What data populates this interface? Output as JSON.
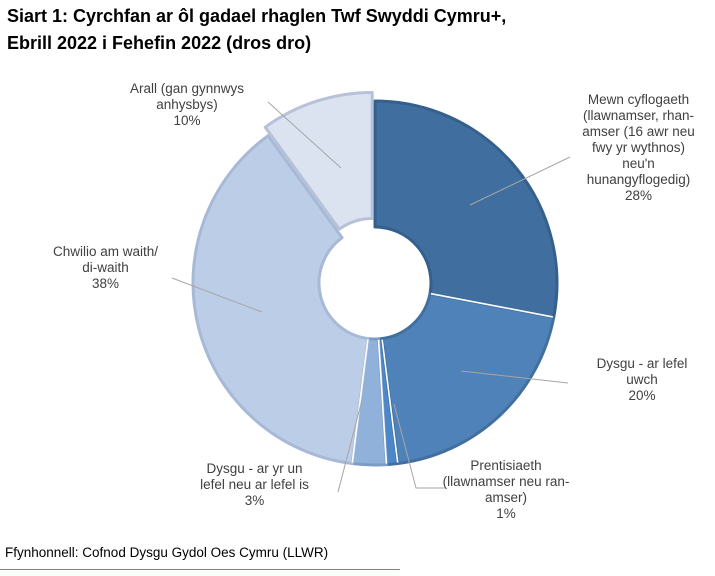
{
  "title": {
    "line1": "Siart 1: Cyrchfan ar ôl gadael rhaglen Twf Swyddi Cymru+,",
    "line2": "Ebrill 2022 i Fehefin 2022 (dros dro)"
  },
  "source": "Ffynhonnell: Cofnod Dysgu Gydol Oes Cymru (LLWR)",
  "colors": {
    "background": "#ffffff",
    "leader_line": "#a6a6a6",
    "label_text": "#404040",
    "source_underline": "#4472c4",
    "separator": "#ffffff"
  },
  "chart_data": {
    "type": "pie",
    "subtype": "donut",
    "title": "Siart 1: Cyrchfan ar ôl gadael rhaglen Twf Swyddi Cymru+, Ebrill 2022 i Fehefin 2022 (dros dro)",
    "start_angle_deg": 0,
    "direction": "clockwise",
    "legend": "none",
    "segments": [
      {
        "key": "mewn",
        "label": "Mewn cyflogaeth (llawnamser, rhan-amser (16 awr neu fwy yr wythnos) neu'n hunangyflogedig)",
        "value_pct": 28,
        "color": "#406e9e",
        "border": "#35608d",
        "exploded": false
      },
      {
        "key": "dysgu-uwch",
        "label": "Dysgu - ar lefel uwch",
        "value_pct": 20,
        "color": "#4e82b8",
        "border": "#426f9e",
        "exploded": false
      },
      {
        "key": "prentisiaeth",
        "label": "Prentisiaeth (llawnamser neu ran-amser)",
        "value_pct": 1,
        "color": "#4c87c9",
        "border": "#3f70a4",
        "exploded": false
      },
      {
        "key": "dysgu-is",
        "label": "Dysgu - ar yr un lefel neu ar lefel is",
        "value_pct": 3,
        "color": "#8fb1da",
        "border": "#7c9cc4",
        "exploded": false
      },
      {
        "key": "chwilio",
        "label": "Chwilio am waith/ di-waith",
        "value_pct": 38,
        "color": "#bccde8",
        "border": "#a7b9d6",
        "exploded": false
      },
      {
        "key": "arall",
        "label": "Arall (gan gynnwys anhysbys)",
        "value_pct": 10,
        "color": "#dbe3f1",
        "border": "#b7c2d8",
        "exploded": true
      }
    ]
  },
  "callouts": [
    {
      "key": "arall",
      "lines": [
        "Arall (gan gynnwys",
        "anhysbys)",
        "10%"
      ]
    },
    {
      "key": "mewn",
      "lines": [
        "Mewn cyflogaeth",
        "(llawnamser, rhan-",
        "amser (16 awr neu",
        "fwy yr wythnos)",
        "neu'n",
        "hunangyflogedig)",
        "28%"
      ]
    },
    {
      "key": "dysgu-uwch",
      "lines": [
        "Dysgu - ar lefel",
        "uwch",
        "20%"
      ]
    },
    {
      "key": "prentisiaeth",
      "lines": [
        "Prentisiaeth",
        "(llawnamser neu ran-",
        "amser)",
        "1%"
      ]
    },
    {
      "key": "dysgu-is",
      "lines": [
        "Dysgu - ar yr un",
        "lefel neu ar lefel is",
        "3%"
      ]
    },
    {
      "key": "chwilio",
      "lines": [
        "Chwilio am waith/",
        "di-waith",
        "38%"
      ]
    }
  ]
}
